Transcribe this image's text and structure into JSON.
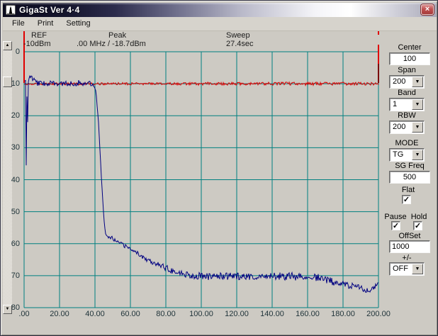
{
  "window": {
    "title": "GigaSt Ver 4·4"
  },
  "icons": {
    "close": "×",
    "combo_arrow": "▼",
    "scroll_up": "▲",
    "scroll_down": "▼",
    "check": "✓"
  },
  "menu": {
    "items": [
      "File",
      "Print",
      "Setting"
    ]
  },
  "readout": {
    "ref_label": "REF",
    "ref_value": "-10dBm",
    "peak_label": "Peak",
    "peak_value": ".00 MHz /  -18.7dBm",
    "sweep_label": "Sweep",
    "sweep_value": "27.4sec"
  },
  "controls": {
    "center": {
      "label": "Center",
      "value": "100"
    },
    "span": {
      "label": "Span",
      "value": "200"
    },
    "band": {
      "label": "Band",
      "value": "1"
    },
    "rbw": {
      "label": "RBW",
      "value": "200"
    },
    "mode": {
      "label": "MODE",
      "value": "TG"
    },
    "sg_freq": {
      "label": "SG Freq",
      "value": "500"
    },
    "flat": {
      "label": "Flat",
      "checked": true
    },
    "pause": {
      "label": "Pause",
      "checked": true
    },
    "hold": {
      "label": "Hold",
      "checked": true
    },
    "offset": {
      "label": "OffSet",
      "value": "1000"
    },
    "plus_minus": {
      "label": "+/-",
      "value": "OFF"
    }
  },
  "chart_data": {
    "type": "line",
    "x_range": [
      0,
      200
    ],
    "y_range": [
      0,
      80
    ],
    "x_ticks": [
      ".00",
      "20.00",
      "40.00",
      "60.00",
      "80.00",
      "100.00",
      "120.00",
      "140.00",
      "160.00",
      "180.00",
      "200.00"
    ],
    "y_ticks": [
      "0",
      "10",
      "20",
      "30",
      "40",
      "50",
      "60",
      "70",
      "80"
    ],
    "grid": true,
    "grid_color": "#008080",
    "series": [
      {
        "name": "reference-trace",
        "color": "#dc0000",
        "seed": 11,
        "anchors": [
          [
            0,
            10.1,
            0.35
          ],
          [
            40,
            10,
            0.4
          ],
          [
            80,
            10,
            0.35
          ],
          [
            105,
            10,
            0.5
          ],
          [
            130,
            10,
            0.45
          ],
          [
            160,
            10,
            0.55
          ],
          [
            200,
            10,
            0.45
          ]
        ]
      },
      {
        "name": "signal-trace",
        "color": "#000080",
        "seed": 7,
        "anchors": [
          [
            0,
            9.5,
            0.3
          ],
          [
            0.8,
            9,
            0
          ],
          [
            1.2,
            35.5,
            0
          ],
          [
            1.6,
            14,
            0
          ],
          [
            2,
            22,
            0
          ],
          [
            2.4,
            9.5,
            0
          ],
          [
            3.2,
            7.5,
            0.7
          ],
          [
            4.8,
            8.5,
            1.0
          ],
          [
            7,
            9.5,
            1.1
          ],
          [
            10,
            10,
            0.9
          ],
          [
            14,
            9.8,
            0.8
          ],
          [
            18,
            10,
            0.7
          ],
          [
            22,
            10,
            0.8
          ],
          [
            26,
            9.9,
            0.8
          ],
          [
            30,
            9.8,
            0.9
          ],
          [
            34,
            9.7,
            0.9
          ],
          [
            37.5,
            10,
            0.7
          ],
          [
            39.5,
            10.8,
            0.4
          ],
          [
            40.5,
            12,
            0.2
          ],
          [
            42,
            22,
            0.2
          ],
          [
            43.5,
            38,
            0.2
          ],
          [
            45,
            52,
            0.2
          ],
          [
            45.8,
            56.5,
            0.3
          ],
          [
            47,
            57.5,
            0.6
          ],
          [
            49,
            57.8,
            0.8
          ],
          [
            52,
            59.3,
            0.7
          ],
          [
            56,
            60.5,
            0.6
          ],
          [
            60,
            61.5,
            0.6
          ],
          [
            64,
            63,
            0.7
          ],
          [
            68,
            64.5,
            0.8
          ],
          [
            72,
            65.5,
            0.9
          ],
          [
            76,
            66.5,
            0.9
          ],
          [
            80,
            67.5,
            1.0
          ],
          [
            85,
            68.7,
            1.0
          ],
          [
            90,
            69.4,
            1.0
          ],
          [
            95,
            70,
            1.1
          ],
          [
            105,
            70.3,
            1.1
          ],
          [
            115,
            70.1,
            1.2
          ],
          [
            125,
            70.4,
            1.1
          ],
          [
            135,
            70.2,
            1.2
          ],
          [
            145,
            70.1,
            1.2
          ],
          [
            155,
            70.4,
            1.3
          ],
          [
            163,
            70.2,
            1.2
          ],
          [
            168,
            70.9,
            1.2
          ],
          [
            174,
            71.9,
            1.1
          ],
          [
            180,
            72.7,
            1.1
          ],
          [
            186,
            73.4,
            1.0
          ],
          [
            191,
            74.2,
            1.0
          ],
          [
            195,
            74.3,
            1.0
          ],
          [
            198,
            73.6,
            0.9
          ],
          [
            200,
            72.2,
            0.4
          ]
        ]
      }
    ],
    "edge_markers": [
      {
        "mhz": 0,
        "segments": [
          [
            42,
            116,
            "#e00000"
          ]
        ]
      },
      {
        "mhz": 200,
        "segments": [
          [
            41,
            48,
            "#e00000"
          ],
          [
            62,
            89,
            "#e00000"
          ],
          [
            89,
            116,
            "#7a0404"
          ]
        ]
      }
    ]
  }
}
